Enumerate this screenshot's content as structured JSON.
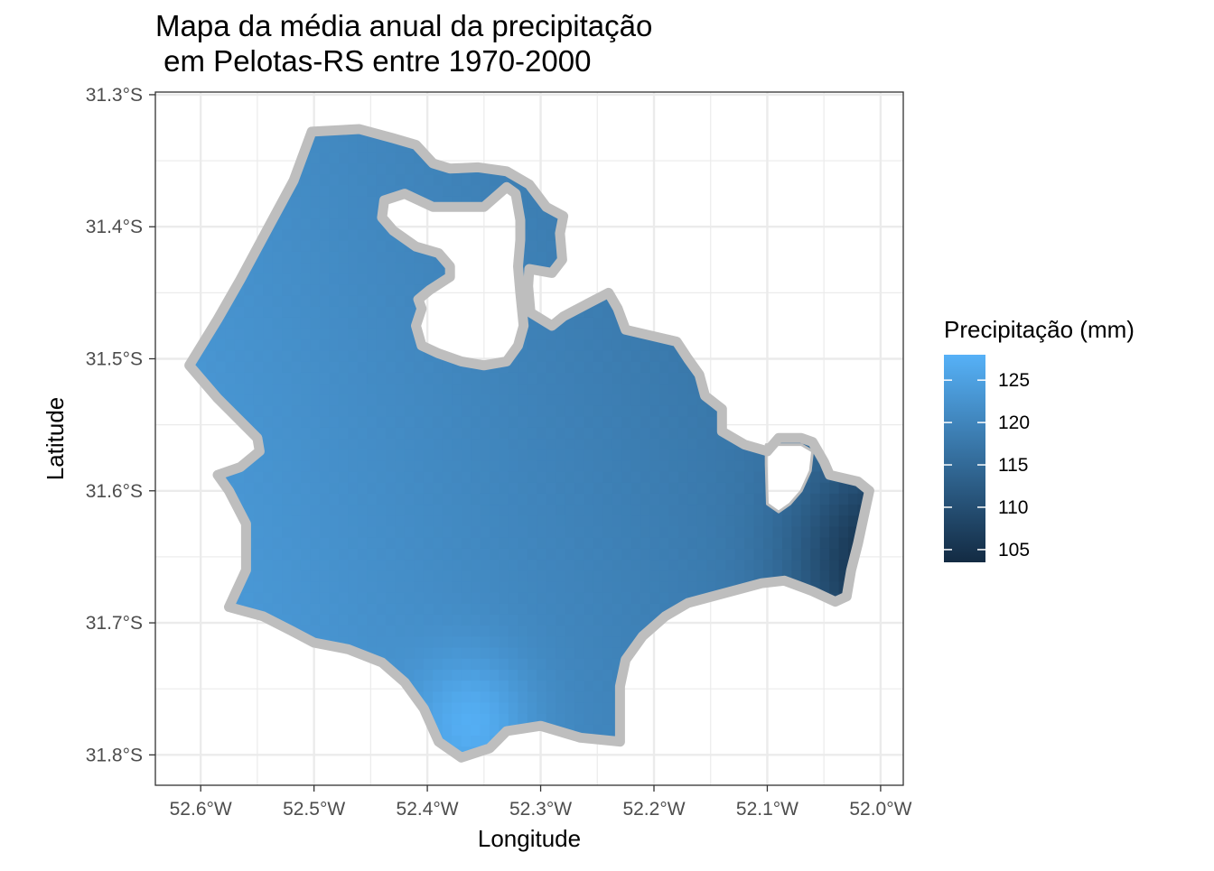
{
  "title_line1": "Mapa da média anual da precipitação",
  "title_line2": " em Pelotas-RS entre 1970-2000",
  "x_axis_label": "Longitude",
  "y_axis_label": "Latitude",
  "legend_title": "Precipitação (mm)",
  "colors": {
    "high": "#56B1F7",
    "low": "#132B43",
    "boundary": "#BEBEBE",
    "grid": "#EBEBEB",
    "panel_border": "#333333"
  },
  "chart_data": {
    "type": "heatmap",
    "title": "Mapa da média anual da precipitação\n em Pelotas-RS entre 1970-2000",
    "xlabel": "Longitude",
    "ylabel": "Latitude",
    "xlim": [
      -52.64,
      -51.98
    ],
    "ylim": [
      -31.823,
      -31.298
    ],
    "x_ticks": [
      -52.6,
      -52.5,
      -52.4,
      -52.3,
      -52.2,
      -52.1,
      -52.0
    ],
    "x_tick_labels": [
      "52.6°W",
      "52.5°W",
      "52.4°W",
      "52.3°W",
      "52.2°W",
      "52.1°W",
      "52.0°W"
    ],
    "y_ticks": [
      -31.3,
      -31.4,
      -31.5,
      -31.6,
      -31.7,
      -31.8
    ],
    "y_tick_labels": [
      "31.3°S",
      "31.4°S",
      "31.5°S",
      "31.6°S",
      "31.7°S",
      "31.8°S"
    ],
    "grid": true,
    "legend": {
      "title": "Precipitação (mm)",
      "placement": "right",
      "range": [
        103.5,
        128
      ],
      "ticks": [
        105,
        110,
        115,
        120,
        125
      ],
      "tick_labels": [
        "105",
        "110",
        "115",
        "120",
        "125"
      ]
    },
    "boundary_lonlat": [
      [
        -52.502,
        -31.328
      ],
      [
        -52.48,
        -31.327
      ],
      [
        -52.46,
        -31.326
      ],
      [
        -52.43,
        -31.333
      ],
      [
        -52.41,
        -31.338
      ],
      [
        -52.395,
        -31.352
      ],
      [
        -52.38,
        -31.356
      ],
      [
        -52.355,
        -31.355
      ],
      [
        -52.33,
        -31.358
      ],
      [
        -52.31,
        -31.368
      ],
      [
        -52.295,
        -31.385
      ],
      [
        -52.28,
        -31.392
      ],
      [
        -52.283,
        -31.405
      ],
      [
        -52.281,
        -31.425
      ],
      [
        -52.29,
        -31.435
      ],
      [
        -52.31,
        -31.432
      ],
      [
        -52.311,
        -31.445
      ],
      [
        -52.309,
        -31.465
      ],
      [
        -52.29,
        -31.475
      ],
      [
        -52.28,
        -31.468
      ],
      [
        -52.258,
        -31.458
      ],
      [
        -52.24,
        -31.45
      ],
      [
        -52.232,
        -31.462
      ],
      [
        -52.225,
        -31.478
      ],
      [
        -52.205,
        -31.482
      ],
      [
        -52.18,
        -31.487
      ],
      [
        -52.17,
        -31.5
      ],
      [
        -52.16,
        -31.512
      ],
      [
        -52.155,
        -31.528
      ],
      [
        -52.14,
        -31.538
      ],
      [
        -52.14,
        -31.555
      ],
      [
        -52.12,
        -31.565
      ],
      [
        -52.1,
        -31.57
      ],
      [
        -52.09,
        -31.56
      ],
      [
        -52.07,
        -31.56
      ],
      [
        -52.06,
        -31.563
      ],
      [
        -52.05,
        -31.578
      ],
      [
        -52.045,
        -31.588
      ],
      [
        -52.02,
        -31.593
      ],
      [
        -52.01,
        -31.6
      ],
      [
        -52.015,
        -31.62
      ],
      [
        -52.02,
        -31.64
      ],
      [
        -52.026,
        -31.66
      ],
      [
        -52.03,
        -31.68
      ],
      [
        -52.04,
        -31.684
      ],
      [
        -52.06,
        -31.676
      ],
      [
        -52.085,
        -31.668
      ],
      [
        -52.105,
        -31.67
      ],
      [
        -52.14,
        -31.678
      ],
      [
        -52.17,
        -31.685
      ],
      [
        -52.19,
        -31.695
      ],
      [
        -52.21,
        -31.71
      ],
      [
        -52.225,
        -31.728
      ],
      [
        -52.23,
        -31.748
      ],
      [
        -52.23,
        -31.775
      ],
      [
        -52.23,
        -31.79
      ],
      [
        -52.265,
        -31.787
      ],
      [
        -52.3,
        -31.778
      ],
      [
        -52.33,
        -31.782
      ],
      [
        -52.345,
        -31.795
      ],
      [
        -52.37,
        -31.802
      ],
      [
        -52.39,
        -31.79
      ],
      [
        -52.403,
        -31.765
      ],
      [
        -52.42,
        -31.745
      ],
      [
        -52.44,
        -31.73
      ],
      [
        -52.47,
        -31.72
      ],
      [
        -52.5,
        -31.715
      ],
      [
        -52.52,
        -31.706
      ],
      [
        -52.545,
        -31.695
      ],
      [
        -52.575,
        -31.688
      ],
      [
        -52.56,
        -31.66
      ],
      [
        -52.56,
        -31.625
      ],
      [
        -52.575,
        -31.6
      ],
      [
        -52.585,
        -31.588
      ],
      [
        -52.565,
        -31.582
      ],
      [
        -52.548,
        -31.57
      ],
      [
        -52.55,
        -31.56
      ],
      [
        -52.585,
        -31.53
      ],
      [
        -52.61,
        -31.505
      ],
      [
        -52.585,
        -31.47
      ],
      [
        -52.565,
        -31.44
      ],
      [
        -52.54,
        -31.4
      ],
      [
        -52.518,
        -31.365
      ]
    ],
    "holes_lonlat": [
      [
        [
          -52.438,
          -31.38
        ],
        [
          -52.44,
          -31.393
        ],
        [
          -52.43,
          -31.403
        ],
        [
          -52.41,
          -31.415
        ],
        [
          -52.39,
          -31.42
        ],
        [
          -52.38,
          -31.43
        ],
        [
          -52.38,
          -31.438
        ],
        [
          -52.398,
          -31.448
        ],
        [
          -52.408,
          -31.455
        ],
        [
          -52.405,
          -31.462
        ],
        [
          -52.41,
          -31.475
        ],
        [
          -52.405,
          -31.49
        ],
        [
          -52.39,
          -31.496
        ],
        [
          -52.37,
          -31.502
        ],
        [
          -52.35,
          -31.505
        ],
        [
          -52.33,
          -31.502
        ],
        [
          -52.32,
          -31.49
        ],
        [
          -52.315,
          -31.475
        ],
        [
          -52.318,
          -31.45
        ],
        [
          -52.32,
          -31.43
        ],
        [
          -52.318,
          -31.41
        ],
        [
          -52.318,
          -31.395
        ],
        [
          -52.322,
          -31.375
        ],
        [
          -52.33,
          -31.37
        ],
        [
          -52.35,
          -31.385
        ],
        [
          -52.37,
          -31.385
        ],
        [
          -52.395,
          -31.385
        ],
        [
          -52.42,
          -31.375
        ]
      ],
      [
        [
          -52.101,
          -31.565
        ],
        [
          -52.07,
          -31.565
        ],
        [
          -52.06,
          -31.57
        ],
        [
          -52.062,
          -31.585
        ],
        [
          -52.07,
          -31.6
        ],
        [
          -52.08,
          -31.61
        ],
        [
          -52.09,
          -31.616
        ],
        [
          -52.1,
          -31.61
        ],
        [
          -52.101,
          -31.58
        ]
      ]
    ],
    "notes": "Raster of annual mean precipitation; values increase toward the southwest, highest (~128 mm) near 52.35°W 31.78°S, lowest (~104 mm) at the eastern edge near 52.02°W 31.66°S."
  }
}
